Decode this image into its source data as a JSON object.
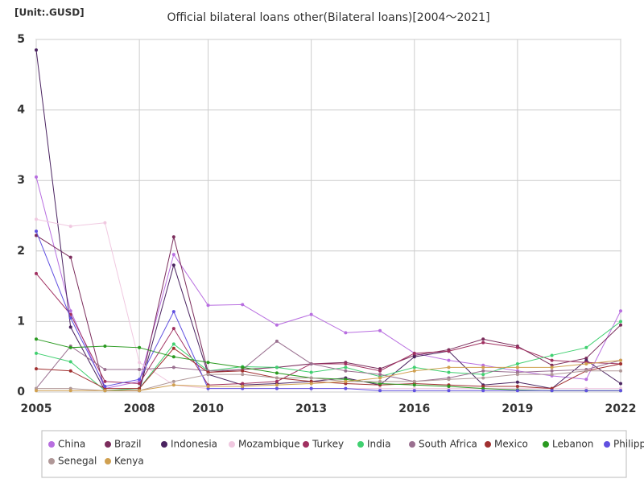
{
  "chart_data": {
    "type": "line",
    "title": "Official bilateral loans other(Bilateral loans)[2004～2021]",
    "unit": "[Unit:.GUSD]",
    "x": [
      2005,
      2006,
      2007,
      2008,
      2009,
      2010,
      2011,
      2012,
      2013,
      2014,
      2015,
      2016,
      2017,
      2018,
      2019,
      2020,
      2021,
      2022
    ],
    "xlim": [
      2005,
      2022
    ],
    "xticks": [
      2005,
      2008,
      2010,
      2013,
      2016,
      2019,
      2022
    ],
    "ylim": [
      0,
      5
    ],
    "yticks": [
      0,
      1,
      2,
      3,
      4,
      5
    ],
    "grid": true,
    "series": [
      {
        "name": "China",
        "color": "#b86ee0",
        "values": [
          3.05,
          1.15,
          0.05,
          0.15,
          1.95,
          1.23,
          1.24,
          0.95,
          1.1,
          0.84,
          0.87,
          0.55,
          0.45,
          0.38,
          0.3,
          0.23,
          0.18,
          1.15
        ]
      },
      {
        "name": "Brazil",
        "color": "#7b2d5c",
        "values": [
          2.22,
          1.91,
          0.02,
          0.02,
          2.2,
          0.28,
          0.32,
          0.35,
          0.4,
          0.42,
          0.33,
          0.52,
          0.6,
          0.75,
          0.65,
          0.38,
          0.48,
          0.95
        ]
      },
      {
        "name": "Indonesia",
        "color": "#4a2360",
        "values": [
          4.85,
          0.92,
          0.02,
          0.02,
          1.8,
          0.25,
          0.1,
          0.12,
          0.15,
          0.2,
          0.1,
          0.5,
          0.58,
          0.1,
          0.14,
          0.05,
          0.45,
          0.12
        ]
      },
      {
        "name": "Mozambique",
        "color": "#f0c8e0",
        "values": [
          2.45,
          2.35,
          2.4,
          0.42,
          0.1,
          0.05,
          0.05,
          0.05,
          0.05,
          0.05,
          0.05,
          0.05,
          0.05,
          0.05,
          0.05,
          0.05,
          0.05,
          0.05
        ]
      },
      {
        "name": "Turkey",
        "color": "#a03060",
        "values": [
          1.68,
          1.1,
          0.15,
          0.12,
          0.9,
          0.1,
          0.12,
          0.15,
          0.4,
          0.4,
          0.3,
          0.55,
          0.58,
          0.7,
          0.63,
          0.45,
          0.42,
          0.4
        ]
      },
      {
        "name": "India",
        "color": "#40d070",
        "values": [
          0.55,
          0.43,
          0.02,
          0.05,
          0.68,
          0.3,
          0.36,
          0.35,
          0.28,
          0.35,
          0.22,
          0.35,
          0.28,
          0.25,
          0.4,
          0.52,
          0.63,
          1.0
        ]
      },
      {
        "name": "South Africa",
        "color": "#9a7090",
        "values": [
          0.05,
          0.65,
          0.32,
          0.32,
          0.35,
          0.3,
          0.32,
          0.72,
          0.4,
          0.3,
          0.25,
          0.15,
          0.2,
          0.3,
          0.28,
          0.3,
          0.32,
          0.45
        ]
      },
      {
        "name": "Mexico",
        "color": "#a03030",
        "values": [
          0.33,
          0.3,
          0.05,
          0.05,
          0.62,
          0.28,
          0.3,
          0.2,
          0.15,
          0.12,
          0.1,
          0.12,
          0.1,
          0.08,
          0.08,
          0.05,
          0.3,
          0.4
        ]
      },
      {
        "name": "Lebanon",
        "color": "#2a9a20",
        "values": [
          0.75,
          0.63,
          0.65,
          0.63,
          0.5,
          0.42,
          0.35,
          0.27,
          0.2,
          0.18,
          0.12,
          0.1,
          0.08,
          0.05,
          0.03,
          0.02,
          0.02,
          0.02
        ]
      },
      {
        "name": "Philippines",
        "color": "#6050e0",
        "values": [
          2.28,
          1.05,
          0.08,
          0.18,
          1.14,
          0.05,
          0.05,
          0.05,
          0.05,
          0.05,
          0.02,
          0.02,
          0.02,
          0.02,
          0.02,
          0.02,
          0.02,
          0.02
        ]
      },
      {
        "name": "Senegal",
        "color": "#b09898",
        "values": [
          0.05,
          0.05,
          0.02,
          0.02,
          0.15,
          0.25,
          0.25,
          0.2,
          0.2,
          0.15,
          0.15,
          0.15,
          0.18,
          0.2,
          0.25,
          0.25,
          0.3,
          0.3
        ]
      },
      {
        "name": "Kenya",
        "color": "#d0a050",
        "values": [
          0.02,
          0.02,
          0.02,
          0.02,
          0.1,
          0.08,
          0.08,
          0.1,
          0.12,
          0.15,
          0.2,
          0.3,
          0.35,
          0.35,
          0.35,
          0.35,
          0.4,
          0.45
        ]
      }
    ]
  }
}
